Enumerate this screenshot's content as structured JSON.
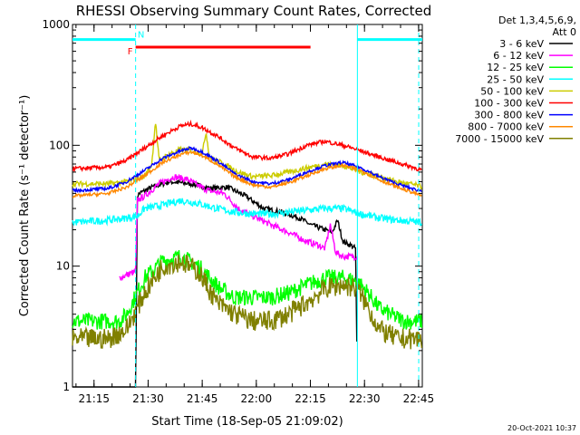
{
  "chart_data": {
    "type": "line",
    "title": "RHESSI Observing Summary Count Rates, Corrected",
    "xlabel": "Start Time (18-Sep-05 21:09:02)",
    "ylabel": "Corrected Count Rate (s⁻¹ detector⁻¹)",
    "yscale": "log",
    "ylim": [
      1,
      1000
    ],
    "xlim_minutes": [
      0,
      97
    ],
    "x_ticks": [
      {
        "label": "21:15",
        "minute": 5.97
      },
      {
        "label": "21:30",
        "minute": 20.97
      },
      {
        "label": "21:45",
        "minute": 35.97
      },
      {
        "label": "22:00",
        "minute": 50.97
      },
      {
        "label": "22:15",
        "minute": 65.97
      },
      {
        "label": "22:30",
        "minute": 80.97
      },
      {
        "label": "22:45",
        "minute": 95.97
      }
    ],
    "y_ticks": [
      {
        "label": "1",
        "value": 1
      },
      {
        "label": "10",
        "value": 10
      },
      {
        "label": "100",
        "value": 100
      },
      {
        "label": "1000",
        "value": 1000
      }
    ],
    "legend_header": [
      "Det 1,3,4,5,6,9,",
      "Att 0"
    ],
    "legend_position": "right",
    "series": [
      {
        "name": "3 - 6 keV",
        "color": "#000000",
        "x": [
          0,
          17.5,
          18,
          18.5,
          22,
          27,
          33,
          38,
          43,
          48,
          53,
          58,
          63,
          66,
          70,
          72,
          73.5,
          75,
          77,
          78.5,
          79
        ],
        "y": [
          1,
          1,
          38,
          40,
          45,
          50,
          48,
          44,
          45,
          38,
          30,
          28,
          25,
          22,
          20,
          19,
          24,
          16,
          15,
          14,
          1
        ]
      },
      {
        "name": "6 - 12 keV",
        "color": "#ff00ff",
        "x": [
          13,
          17.5,
          18,
          20,
          24,
          28,
          32,
          35,
          38,
          42,
          46,
          50,
          55,
          60,
          65,
          68,
          70,
          71.5,
          73,
          75,
          78,
          79
        ],
        "y": [
          8,
          9,
          35,
          38,
          48,
          55,
          52,
          46,
          42,
          40,
          30,
          26,
          22,
          19,
          16,
          15,
          14,
          22,
          13,
          12,
          12,
          12
        ]
      },
      {
        "name": "12 - 25 keV",
        "color": "#00ff00",
        "x": [
          0,
          13,
          15,
          20,
          25,
          30,
          35,
          38,
          41,
          45,
          50,
          55,
          60,
          65,
          70,
          75,
          79,
          82,
          85,
          88,
          92,
          97
        ],
        "y": [
          3.5,
          3.5,
          4,
          8,
          11,
          12,
          10,
          8,
          6.5,
          5.5,
          5.5,
          5.5,
          6,
          7,
          8,
          8,
          7.5,
          6,
          4.5,
          4,
          3.5,
          3.5
        ]
      },
      {
        "name": "25 - 50 keV",
        "color": "#00ffff",
        "x": [
          0,
          10,
          15,
          18,
          20,
          25,
          30,
          35,
          40,
          45,
          50,
          55,
          60,
          65,
          70,
          75,
          80,
          85,
          90,
          97
        ],
        "y": [
          23,
          24,
          25,
          26,
          30,
          32,
          35,
          33,
          30,
          28,
          27,
          27,
          28,
          29,
          30,
          30,
          27,
          25,
          24,
          23
        ]
      },
      {
        "name": "50 - 100 keV",
        "color": "#cccc00",
        "x": [
          0,
          10,
          15,
          20,
          22,
          23,
          24,
          27,
          30,
          33,
          36,
          37,
          38,
          42,
          46,
          50,
          55,
          60,
          65,
          70,
          75,
          80,
          85,
          90,
          95,
          97
        ],
        "y": [
          48,
          48,
          50,
          55,
          70,
          160,
          75,
          85,
          92,
          90,
          85,
          130,
          80,
          70,
          60,
          55,
          56,
          60,
          65,
          70,
          68,
          60,
          55,
          50,
          47,
          45
        ]
      },
      {
        "name": "100 - 300 keV",
        "color": "#ff0000",
        "x": [
          0,
          10,
          15,
          20,
          25,
          30,
          33,
          36,
          40,
          45,
          50,
          55,
          60,
          65,
          70,
          75,
          80,
          85,
          90,
          95,
          97
        ],
        "y": [
          64,
          66,
          75,
          95,
          120,
          145,
          150,
          140,
          120,
          95,
          80,
          78,
          85,
          100,
          108,
          100,
          90,
          80,
          72,
          65,
          62
        ]
      },
      {
        "name": "300 - 800 keV",
        "color": "#0000ff",
        "x": [
          0,
          10,
          15,
          20,
          25,
          30,
          33,
          36,
          40,
          45,
          50,
          55,
          60,
          65,
          70,
          75,
          80,
          85,
          90,
          95,
          97
        ],
        "y": [
          42,
          44,
          50,
          62,
          78,
          90,
          95,
          88,
          75,
          58,
          50,
          48,
          52,
          60,
          68,
          72,
          65,
          55,
          48,
          43,
          42
        ]
      },
      {
        "name": "800 - 7000 keV",
        "color": "#ff8800",
        "x": [
          0,
          10,
          15,
          20,
          25,
          30,
          33,
          36,
          40,
          45,
          50,
          55,
          60,
          65,
          70,
          75,
          80,
          85,
          90,
          95,
          97
        ],
        "y": [
          38,
          40,
          45,
          56,
          72,
          84,
          88,
          82,
          70,
          55,
          47,
          45,
          49,
          56,
          64,
          68,
          62,
          52,
          45,
          40,
          38
        ]
      },
      {
        "name": "7000 - 15000 keV",
        "color": "#808000",
        "x": [
          0,
          10,
          15,
          20,
          25,
          30,
          35,
          40,
          45,
          50,
          55,
          60,
          65,
          70,
          75,
          79,
          82,
          85,
          90,
          97
        ],
        "y": [
          2.5,
          2.5,
          3,
          6,
          10,
          11,
          9,
          5,
          4,
          3.5,
          3.5,
          4,
          5,
          6.5,
          7,
          6.5,
          4.5,
          3,
          2.5,
          2.5
        ]
      }
    ],
    "annotations": [
      {
        "label": "F",
        "color": "#ff0000",
        "start_min": 17.5,
        "end_min": 66.0,
        "level": 650
      },
      {
        "label": "N",
        "color": "#00ffff",
        "start_min": 0.0,
        "end_min": 17.5,
        "level": 750
      },
      {
        "label": "",
        "color": "#00ffff",
        "start_min": 79.0,
        "end_min": 97.0,
        "level": 750
      }
    ],
    "vertical_markers": [
      {
        "minute": 17.5,
        "style": "dashed",
        "color": "#00ffff"
      },
      {
        "minute": 79.0,
        "style": "solid",
        "color": "#00ffff"
      },
      {
        "minute": 96.0,
        "style": "dashed",
        "color": "#00ffff"
      }
    ]
  },
  "footer": {
    "date_stamp": "20-Oct-2021 10:37"
  }
}
